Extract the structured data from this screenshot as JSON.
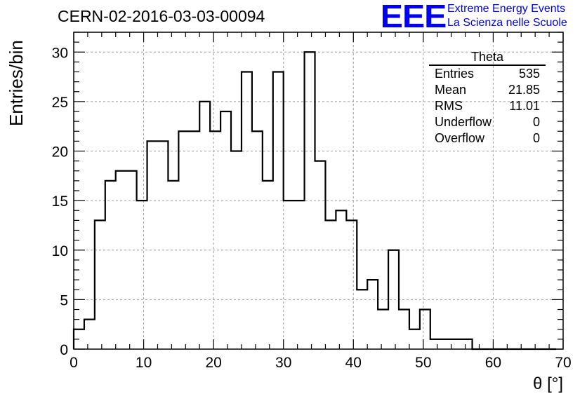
{
  "chart_data": {
    "type": "histogram",
    "title": "CERN-02-2016-03-03-00094",
    "xlabel": "θ [°]",
    "ylabel": "Entries/bin",
    "xlim": [
      0,
      70
    ],
    "ylim": [
      0,
      32
    ],
    "bin_width": 1.5,
    "bin_start": 0,
    "values": [
      2,
      3,
      13,
      17,
      18,
      18,
      15,
      21,
      21,
      17,
      22,
      22,
      25,
      22,
      24,
      20,
      28,
      22,
      17,
      28,
      15,
      15,
      30,
      19,
      13,
      14,
      13,
      6,
      7,
      4,
      10,
      4,
      2,
      4,
      1,
      1,
      1,
      1,
      0,
      0,
      0,
      0,
      0,
      0,
      0,
      0
    ],
    "x_ticks": [
      0,
      10,
      20,
      30,
      40,
      50,
      60,
      70
    ],
    "y_ticks": [
      0,
      5,
      10,
      15,
      20,
      25,
      30
    ],
    "grid": true,
    "stats_box": {
      "name": "Theta",
      "rows": [
        {
          "label": "Entries",
          "value": "535"
        },
        {
          "label": "Mean",
          "value": "21.85"
        },
        {
          "label": "RMS",
          "value": "11.01"
        },
        {
          "label": "Underflow",
          "value": "0"
        },
        {
          "label": "Overflow",
          "value": "0"
        }
      ]
    }
  },
  "logo": {
    "mark": "EEE",
    "line1": "Extreme Energy Events",
    "line2": "La Scienza nelle Scuole",
    "color": "#0000ee"
  },
  "colors": {
    "line": "#000000",
    "grid": "#9e9e9e"
  }
}
